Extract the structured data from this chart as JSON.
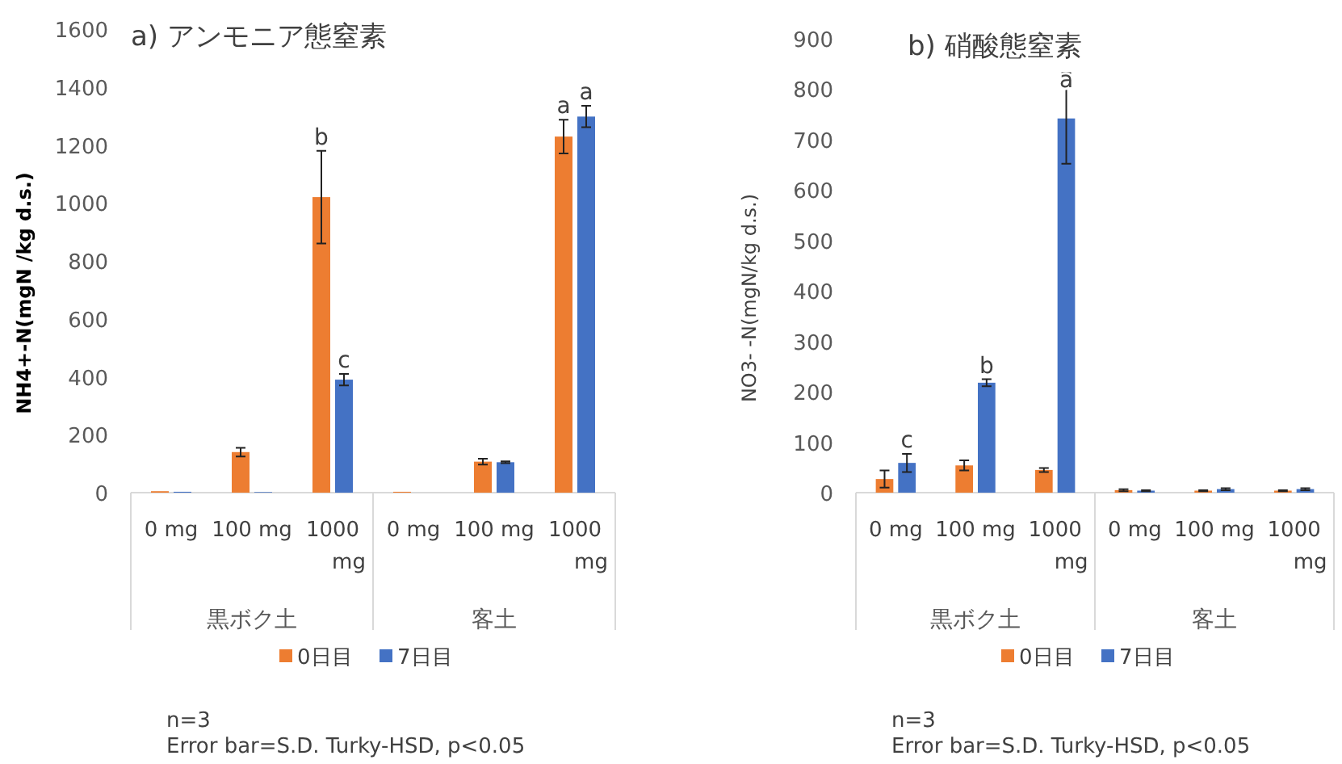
{
  "chart_data": [
    {
      "type": "bar",
      "title": "a) アンモニア態窒素",
      "ylabel": "NH4+-N(mgN /kg d.s.)",
      "categories": [
        "0 mg",
        "100 mg",
        "1000 mg",
        "0 mg",
        "100 mg",
        "1000 mg"
      ],
      "series": [
        {
          "name": "0日目",
          "color": "#ed7d31",
          "values": [
            5,
            140,
            1020,
            3,
            107,
            1229
          ],
          "errors": [
            null,
            15,
            160,
            null,
            10,
            58
          ],
          "value_labels": [
            null,
            null,
            "b",
            null,
            null,
            "a"
          ]
        },
        {
          "name": "7日目",
          "color": "#4472c4",
          "values": [
            3,
            2,
            390,
            0,
            105,
            1298
          ],
          "errors": [
            null,
            null,
            20,
            null,
            3,
            37
          ],
          "value_labels": [
            null,
            null,
            "c",
            null,
            null,
            "a"
          ]
        }
      ],
      "ylim": [
        0,
        1600
      ],
      "yticks": [
        0,
        200,
        400,
        600,
        800,
        1000,
        1200,
        1400,
        1600
      ],
      "grid": false,
      "legend": "bottom",
      "annotations": [
        "黒ボク土",
        "客土",
        "n=3",
        "Error bar=S.D. Turky-HSD, p<0.05"
      ]
    },
    {
      "type": "bar",
      "title": "b) 硝酸態窒素",
      "ylabel": "NO3- -N(mgN/kg d.s.)",
      "categories": [
        "0 mg",
        "100 mg",
        "1000 mg",
        "0 mg",
        "100 mg",
        "1000 mg"
      ],
      "series": [
        {
          "name": "0日目",
          "color": "#ed7d31",
          "values": [
            27,
            54,
            45,
            5,
            4,
            4
          ],
          "errors": [
            17,
            10,
            4,
            2,
            1,
            1
          ],
          "value_labels": [
            null,
            null,
            null,
            null,
            null,
            null
          ]
        },
        {
          "name": "7日目",
          "color": "#4472c4",
          "values": [
            59,
            218,
            742,
            4,
            7,
            7
          ],
          "errors": [
            18,
            7,
            90,
            1,
            2,
            2
          ],
          "value_labels": [
            "c",
            "b",
            "a",
            null,
            null,
            null
          ]
        }
      ],
      "ylim": [
        0,
        900
      ],
      "yticks": [
        0,
        100,
        200,
        300,
        400,
        500,
        600,
        700,
        800,
        900
      ],
      "grid": false,
      "legend": "bottom",
      "annotations": [
        "黒ボク土",
        "客土",
        "n=3",
        "Error bar=S.D. Turky-HSD, p<0.05"
      ]
    }
  ]
}
